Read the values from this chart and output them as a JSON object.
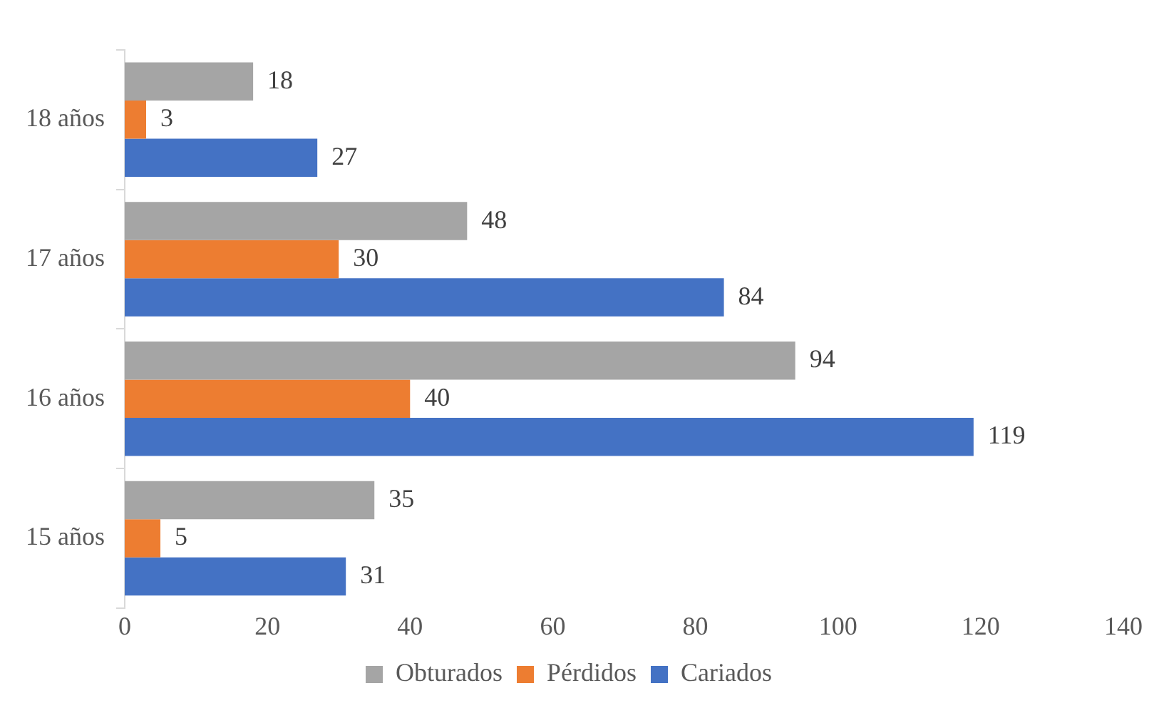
{
  "chart_data": {
    "type": "bar",
    "orientation": "horizontal",
    "categories": [
      "18 años",
      "17 años",
      "16 años",
      "15 años"
    ],
    "series": [
      {
        "name": "Obturados",
        "color": "#a5a5a5",
        "values": [
          18,
          48,
          94,
          35
        ]
      },
      {
        "name": "Pérdidos",
        "color": "#ed7d31",
        "values": [
          3,
          30,
          40,
          5
        ]
      },
      {
        "name": "Cariados",
        "color": "#4472c4",
        "values": [
          27,
          84,
          119,
          31
        ]
      }
    ],
    "xlim": [
      0,
      140
    ],
    "xticks": [
      0,
      20,
      40,
      60,
      80,
      100,
      120,
      140
    ],
    "grid": false,
    "legend": "bottom",
    "data_labels": true
  }
}
